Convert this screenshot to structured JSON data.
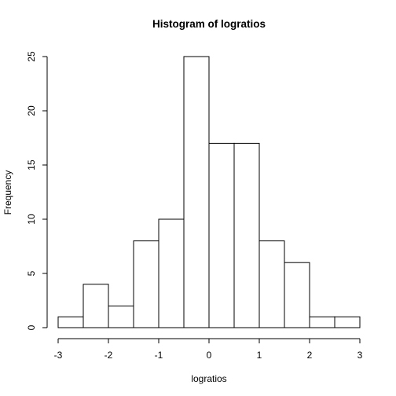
{
  "chart_data": {
    "type": "bar",
    "title": "Histogram of logratios",
    "xlabel": "logratios",
    "ylabel": "Frequency",
    "bins": [
      {
        "start": -3.0,
        "end": -2.5,
        "count": 1
      },
      {
        "start": -2.5,
        "end": -2.0,
        "count": 4
      },
      {
        "start": -2.0,
        "end": -1.5,
        "count": 2
      },
      {
        "start": -1.5,
        "end": -1.0,
        "count": 8
      },
      {
        "start": -1.0,
        "end": -0.5,
        "count": 10
      },
      {
        "start": -0.5,
        "end": 0.0,
        "count": 25
      },
      {
        "start": 0.0,
        "end": 0.5,
        "count": 17
      },
      {
        "start": 0.5,
        "end": 1.0,
        "count": 17
      },
      {
        "start": 1.0,
        "end": 1.5,
        "count": 8
      },
      {
        "start": 1.5,
        "end": 2.0,
        "count": 6
      },
      {
        "start": 2.0,
        "end": 2.5,
        "count": 1
      },
      {
        "start": 2.5,
        "end": 3.0,
        "count": 1
      }
    ],
    "xlim": [
      -3,
      3
    ],
    "ylim": [
      0,
      25
    ],
    "x_ticks": [
      -3,
      -2,
      -1,
      0,
      1,
      2,
      3
    ],
    "y_ticks": [
      0,
      5,
      10,
      15,
      20,
      25
    ],
    "grid": false
  }
}
